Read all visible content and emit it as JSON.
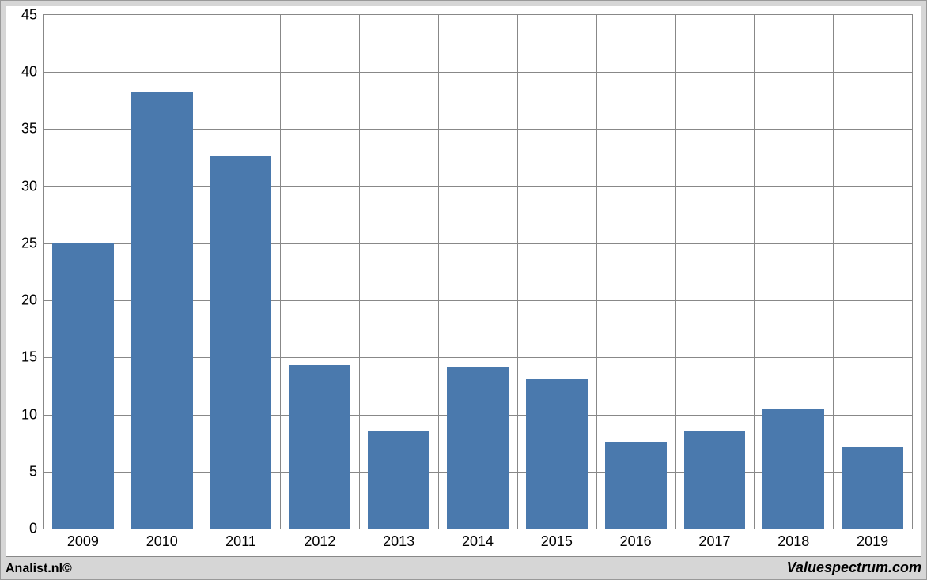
{
  "chart": {
    "type": "bar",
    "categories": [
      "2009",
      "2010",
      "2011",
      "2012",
      "2013",
      "2014",
      "2015",
      "2016",
      "2017",
      "2018",
      "2019"
    ],
    "values": [
      25.0,
      38.2,
      32.7,
      14.3,
      8.6,
      14.1,
      13.1,
      7.6,
      8.5,
      10.5,
      7.1
    ],
    "bar_color": "#4a79ad",
    "ylim_min": 0,
    "ylim_max": 45,
    "ytick_step": 5,
    "yticks": [
      0,
      5,
      10,
      15,
      20,
      25,
      30,
      35,
      40,
      45
    ],
    "grid_color": "#888888",
    "background_color": "#ffffff",
    "outer_background": "#d6d6d6",
    "bar_width_ratio": 0.78,
    "tick_fontsize": 18,
    "tick_color": "#000000"
  },
  "footer": {
    "left": "Analist.nl©",
    "right": "Valuespectrum.com"
  }
}
